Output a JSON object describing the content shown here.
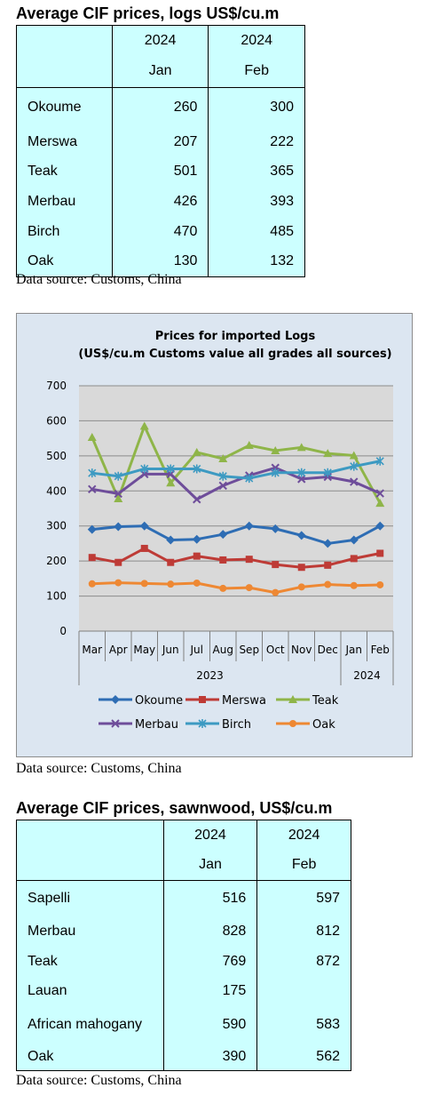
{
  "logs_table": {
    "title": "Average CIF prices, logs US$/cu.m",
    "header": [
      [
        "2024",
        "Jan"
      ],
      [
        "2024",
        "Feb"
      ]
    ],
    "rows": [
      {
        "name": "Okoume",
        "jan": "260",
        "feb": "300"
      },
      {
        "name": "Merswa",
        "jan": "207",
        "feb": "222"
      },
      {
        "name": "Teak",
        "jan": "501",
        "feb": "365"
      },
      {
        "name": "Merbau",
        "jan": "426",
        "feb": "393"
      },
      {
        "name": "Birch",
        "jan": "470",
        "feb": "485"
      },
      {
        "name": "Oak",
        "jan": "130",
        "feb": "132"
      }
    ],
    "source": "Data source: Customs, China"
  },
  "chart_data": {
    "type": "line",
    "title": "Prices for imported Logs",
    "subtitle": "(US$/cu.m Customs value all grades all sources)",
    "categories": [
      "Mar",
      "Apr",
      "May",
      "Jun",
      "Jul",
      "Aug",
      "Sep",
      "Oct",
      "Nov",
      "Dec",
      "Jan",
      "Feb"
    ],
    "year_groups": [
      {
        "label": "2023",
        "from": 0,
        "to": 9
      },
      {
        "label": "2024",
        "from": 10,
        "to": 11
      }
    ],
    "ylim": [
      0,
      700
    ],
    "yticks": [
      "0",
      "100",
      "200",
      "300",
      "400",
      "500",
      "600",
      "700"
    ],
    "grid": true,
    "legend_position": "bottom",
    "series": [
      {
        "name": "Okoume",
        "color": "#2e6db4",
        "marker": "diamond",
        "values": [
          290,
          298,
          300,
          260,
          262,
          276,
          300,
          292,
          273,
          250,
          260,
          300
        ]
      },
      {
        "name": "Merswa",
        "color": "#be3b36",
        "marker": "square",
        "values": [
          210,
          196,
          236,
          196,
          214,
          203,
          205,
          190,
          182,
          188,
          207,
          222
        ]
      },
      {
        "name": "Teak",
        "color": "#8fb549",
        "marker": "triangle",
        "values": [
          553,
          378,
          585,
          423,
          510,
          492,
          530,
          515,
          524,
          507,
          501,
          365
        ]
      },
      {
        "name": "Merbau",
        "color": "#6e4d9a",
        "marker": "x",
        "values": [
          405,
          392,
          448,
          448,
          376,
          415,
          444,
          466,
          434,
          440,
          426,
          393
        ]
      },
      {
        "name": "Birch",
        "color": "#3d9ac2",
        "marker": "star",
        "values": [
          451,
          442,
          463,
          463,
          463,
          442,
          436,
          452,
          452,
          452,
          470,
          485
        ]
      },
      {
        "name": "Oak",
        "color": "#ee8833",
        "marker": "circle",
        "values": [
          135,
          138,
          136,
          134,
          137,
          122,
          124,
          110,
          126,
          133,
          130,
          132
        ]
      }
    ]
  },
  "chart_source": "Data source: Customs, China",
  "sawn_table": {
    "title": "Average CIF prices, sawnwood, US$/cu.m",
    "header": [
      [
        "2024",
        "Jan"
      ],
      [
        "2024",
        "Feb"
      ]
    ],
    "rows": [
      {
        "name": "Sapelli",
        "jan": "516",
        "feb": "597"
      },
      {
        "name": "Merbau",
        "jan": "828",
        "feb": "812"
      },
      {
        "name": "Teak",
        "jan": "769",
        "feb": "872"
      },
      {
        "name": "Lauan",
        "jan": "175",
        "feb": ""
      },
      {
        "name": "African mahogany",
        "jan": "590",
        "feb": "583"
      },
      {
        "name": "Oak",
        "jan": "390",
        "feb": "562"
      }
    ],
    "source": "Data source: Customs, China"
  }
}
